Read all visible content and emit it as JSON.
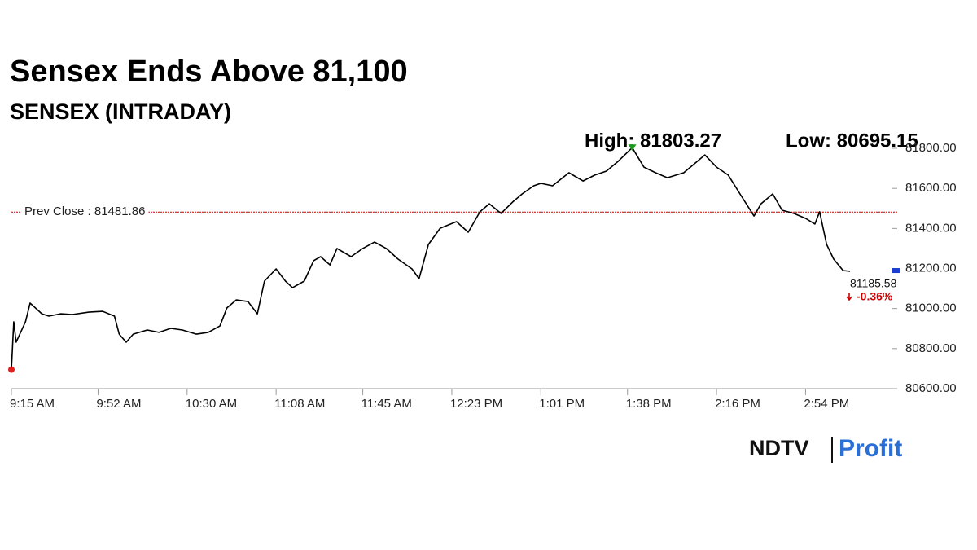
{
  "chart_data": {
    "type": "line",
    "title": "Sensex Ends Above 81,100",
    "subtitle": "SENSEX (INTRADAY)",
    "high_text": "High: 81803.27",
    "low_text": "Low: 80695.15",
    "color": "#000000",
    "x": [
      555,
      556,
      557,
      561,
      563,
      568,
      571,
      576,
      581,
      588,
      594,
      599,
      601,
      604,
      607,
      613,
      618,
      623,
      628,
      634,
      639,
      644,
      647,
      651,
      656,
      660,
      663,
      668,
      672,
      675,
      680,
      684,
      687,
      691,
      694,
      700,
      705,
      710,
      715,
      720,
      726,
      729,
      733,
      738,
      745,
      750,
      755,
      759,
      764,
      769,
      773,
      778,
      781,
      786,
      793,
      799,
      804,
      809,
      814,
      820,
      825,
      830,
      835,
      842,
      847,
      851,
      856,
      861,
      866,
      872,
      875,
      880,
      884,
      889,
      894,
      898,
      900,
      903,
      906,
      910,
      913
    ],
    "values": [
      80695.15,
      80934,
      80832,
      80934,
      81027,
      80974,
      80962,
      80974,
      80970,
      80982,
      80986,
      80962,
      80872,
      80832,
      80872,
      80893,
      80881,
      80901,
      80893,
      80872,
      80881,
      80913,
      81003,
      81043,
      81035,
      80974,
      81137,
      81198,
      81137,
      81104,
      81137,
      81239,
      81259,
      81218,
      81300,
      81259,
      81300,
      81332,
      81300,
      81247,
      81198,
      81149,
      81320,
      81401,
      81434,
      81381,
      81483,
      81523,
      81475,
      81532,
      81572,
      81613,
      81625,
      81613,
      81678,
      81637,
      81666,
      81686,
      81735,
      81803.27,
      81706,
      81678,
      81653,
      81678,
      81727,
      81767,
      81706,
      81666,
      81572,
      81462,
      81523,
      81572,
      81491,
      81475,
      81450,
      81422,
      81483,
      81320,
      81247,
      81190,
      81185.58
    ],
    "xlim": [
      555,
      930
    ],
    "xticks": [
      {
        "value": 555,
        "label": "9:15 AM"
      },
      {
        "value": 592,
        "label": "9:52 AM"
      },
      {
        "value": 630,
        "label": "10:30 AM"
      },
      {
        "value": 668,
        "label": "11:08 AM"
      },
      {
        "value": 705,
        "label": "11:45 AM"
      },
      {
        "value": 743,
        "label": "12:23 PM"
      },
      {
        "value": 781,
        "label": "1:01 PM"
      },
      {
        "value": 818,
        "label": "1:38 PM"
      },
      {
        "value": 856,
        "label": "2:16 PM"
      },
      {
        "value": 894,
        "label": "2:54 PM"
      }
    ],
    "ylim": [
      80600,
      81800
    ],
    "yticks": [
      {
        "value": 80600,
        "label": "80600.00"
      },
      {
        "value": 80800,
        "label": "80800.00"
      },
      {
        "value": 81000,
        "label": "81000.00"
      },
      {
        "value": 81200,
        "label": "81200.00"
      },
      {
        "value": 81400,
        "label": "81400.00"
      },
      {
        "value": 81600,
        "label": "81600.00"
      },
      {
        "value": 81800,
        "label": "81800.00"
      }
    ],
    "prev_close": {
      "label": "Prev Close : 81481.86",
      "value": 81481.86,
      "color": "#cc0000"
    },
    "last": {
      "value": 81185.58,
      "change": "-0.36%",
      "change_color": "#cc0000"
    },
    "logo": {
      "left": "NDTV",
      "right": "Profit"
    }
  }
}
